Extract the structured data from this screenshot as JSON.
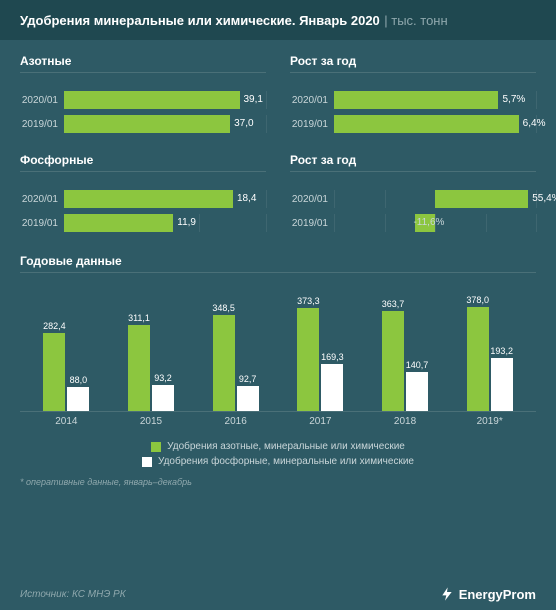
{
  "header": {
    "title": "Удобрения минеральные или химические. Январь 2020",
    "separator": " | ",
    "unit": "тыс. тонн"
  },
  "colors": {
    "bg": "#2e5a65",
    "header_bg": "#1f4850",
    "bar_green": "#8cc63f",
    "bar_white": "#ffffff",
    "text_white": "#ffffff",
    "text_muted": "#c9d6d9",
    "text_faint": "#8fa8ad",
    "grid": "#3e6670",
    "divider": "#4a7078"
  },
  "panels": {
    "nitrogen": {
      "title": "Азотные",
      "type": "hbar",
      "max": 45,
      "bars": [
        {
          "label": "2020/01",
          "value": 39.1,
          "display": "39,1"
        },
        {
          "label": "2019/01",
          "value": 37.0,
          "display": "37,0"
        }
      ]
    },
    "nitrogen_growth": {
      "title": "Рост за год",
      "type": "hbar",
      "max": 7,
      "bars": [
        {
          "label": "2020/01",
          "value": 5.7,
          "display": "5,7%"
        },
        {
          "label": "2019/01",
          "value": 6.4,
          "display": "6,4%"
        }
      ]
    },
    "phosphorus": {
      "title": "Фосфорные",
      "type": "hbar",
      "max": 22,
      "bars": [
        {
          "label": "2020/01",
          "value": 18.4,
          "display": "18,4"
        },
        {
          "label": "2019/01",
          "value": 11.9,
          "display": "11,9"
        }
      ]
    },
    "phosphorus_growth": {
      "title": "Рост за год",
      "type": "hbar_signed",
      "min": -60,
      "max": 60,
      "bars": [
        {
          "label": "2020/01",
          "value": 55.4,
          "display": "55,4%"
        },
        {
          "label": "2019/01",
          "value": -11.6,
          "display": "-11,6%"
        }
      ]
    }
  },
  "annual": {
    "title": "Годовые данные",
    "type": "grouped_bar",
    "ymax": 400,
    "categories": [
      "2014",
      "2015",
      "2016",
      "2017",
      "2018",
      "2019*"
    ],
    "series": [
      {
        "name": "Удобрения азотные, минеральные или химические",
        "color": "#8cc63f",
        "values": [
          282.4,
          311.1,
          348.5,
          373.3,
          363.7,
          378.0
        ],
        "displays": [
          "282,4",
          "311,1",
          "348,5",
          "373,3",
          "363,7",
          "378,0"
        ]
      },
      {
        "name": "Удобрения фосфорные, минеральные или химические",
        "color": "#ffffff",
        "values": [
          88.0,
          93.2,
          92.7,
          169.3,
          140.7,
          193.2
        ],
        "displays": [
          "88,0",
          "93,2",
          "92,7",
          "169,3",
          "140,7",
          "193,2"
        ]
      }
    ]
  },
  "footnote": "* оперативные данные, январь–декабрь",
  "source_label": "Источник: КС МНЭ РК",
  "brand": "EnergyProm"
}
